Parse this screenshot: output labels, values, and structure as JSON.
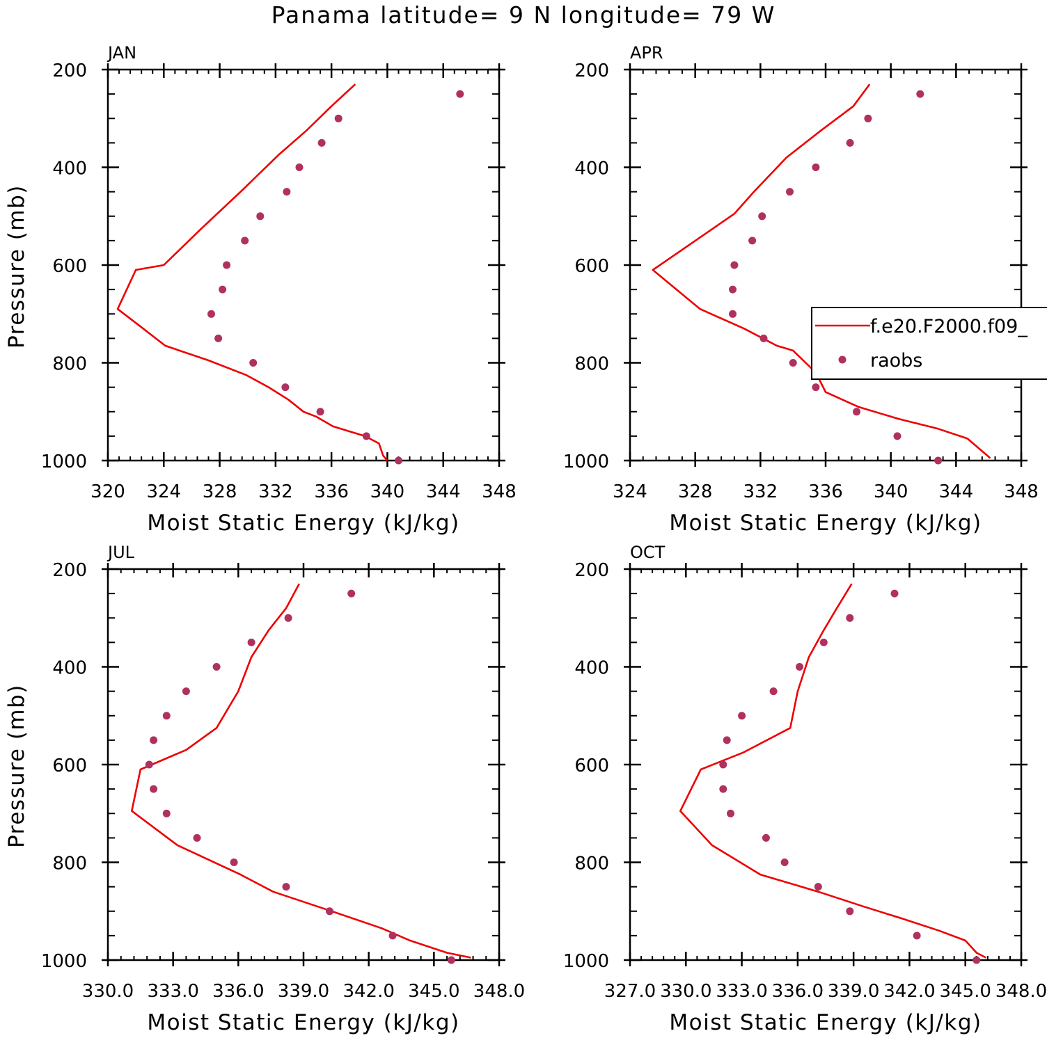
{
  "figure": {
    "title": "Panama  latitude= 9 N longitude= 79 W"
  },
  "colors": {
    "model_line": "#ee0000",
    "raobs_marker": "#b03060",
    "axis": "#000000"
  },
  "legend": {
    "entries": [
      {
        "label": "f.e20.F2000.f09_",
        "type": "line"
      },
      {
        "label": "raobs",
        "type": "marker"
      }
    ]
  },
  "chart_data": [
    {
      "type": "line",
      "panel": "JAN",
      "title": "JAN",
      "xlabel": "Moist Static Energy (kJ/kg)",
      "ylabel": "Pressure (mb)",
      "xlim": [
        320,
        348
      ],
      "ylim": [
        1000,
        200
      ],
      "y_inverted": true,
      "x_ticks": [
        320,
        324,
        328,
        332,
        336,
        340,
        344,
        348
      ],
      "x_tick_labels": [
        "320",
        "324",
        "328",
        "332",
        "336",
        "340",
        "344",
        "348"
      ],
      "y_ticks": [
        200,
        400,
        600,
        800,
        1000
      ],
      "y_tick_labels": [
        "200",
        "400",
        "600",
        "800",
        "1000"
      ],
      "series": [
        {
          "name": "f.e20.F2000.f09_",
          "kind": "line",
          "x": [
            337.7,
            336.0,
            334.2,
            332.2,
            329.5,
            326.7,
            324.0,
            322.0,
            320.7,
            322.3,
            324.1,
            327.2,
            329.9,
            331.5,
            332.9,
            334.0,
            334.9,
            336.1,
            338.4,
            339.4,
            339.7,
            340.0
          ],
          "y": [
            230,
            275,
            325,
            375,
            450,
            525,
            600,
            610,
            690,
            725,
            765,
            795,
            825,
            850,
            875,
            900,
            910,
            930,
            950,
            965,
            990,
            1000
          ]
        },
        {
          "name": "raobs",
          "kind": "scatter",
          "x": [
            345.2,
            336.5,
            335.3,
            333.7,
            332.8,
            330.9,
            329.8,
            328.5,
            328.2,
            327.4,
            327.9,
            330.4,
            332.7,
            335.2,
            338.5,
            340.8
          ],
          "y": [
            250,
            300,
            350,
            400,
            450,
            500,
            550,
            600,
            650,
            700,
            750,
            800,
            850,
            900,
            950,
            1000
          ]
        }
      ]
    },
    {
      "type": "line",
      "panel": "APR",
      "title": "APR",
      "xlabel": "Moist Static Energy (kJ/kg)",
      "ylabel": "",
      "xlim": [
        324,
        348
      ],
      "ylim": [
        1000,
        200
      ],
      "y_inverted": true,
      "x_ticks": [
        324,
        328,
        332,
        336,
        340,
        344,
        348
      ],
      "x_tick_labels": [
        "324",
        "328",
        "332",
        "336",
        "340",
        "344",
        "348"
      ],
      "y_ticks": [
        200,
        400,
        600,
        800,
        1000
      ],
      "y_tick_labels": [
        "200",
        "400",
        "600",
        "800",
        "1000"
      ],
      "series": [
        {
          "name": "f.e20.F2000.f09_",
          "kind": "line",
          "x": [
            338.7,
            337.7,
            335.7,
            333.6,
            331.6,
            330.4,
            329.1,
            325.4,
            328.3,
            331.0,
            333.0,
            334.0,
            335.4,
            336.0,
            338.0,
            340.5,
            342.9,
            344.7,
            346.1
          ],
          "y": [
            230,
            275,
            325,
            380,
            450,
            495,
            525,
            610,
            690,
            730,
            765,
            775,
            820,
            860,
            890,
            915,
            935,
            955,
            995
          ]
        },
        {
          "name": "raobs",
          "kind": "scatter",
          "x": [
            341.8,
            338.6,
            337.5,
            335.4,
            333.8,
            332.1,
            331.5,
            330.4,
            330.3,
            330.3,
            332.2,
            334.0,
            335.4,
            337.9,
            340.4,
            342.9
          ],
          "y": [
            250,
            300,
            350,
            400,
            450,
            500,
            550,
            600,
            650,
            700,
            750,
            800,
            850,
            900,
            950,
            1000
          ]
        }
      ]
    },
    {
      "type": "line",
      "panel": "JUL",
      "title": "JUL",
      "xlabel": "Moist Static Energy (kJ/kg)",
      "ylabel": "Pressure (mb)",
      "xlim": [
        330,
        348
      ],
      "ylim": [
        1000,
        200
      ],
      "y_inverted": true,
      "x_ticks": [
        330,
        333,
        336,
        339,
        342,
        345,
        348
      ],
      "x_tick_labels": [
        "330.0",
        "333.0",
        "336.0",
        "339.0",
        "342.0",
        "345.0",
        "348.0"
      ],
      "y_ticks": [
        200,
        400,
        600,
        800,
        1000
      ],
      "y_tick_labels": [
        "200",
        "400",
        "600",
        "800",
        "1000"
      ],
      "series": [
        {
          "name": "f.e20.F2000.f09_",
          "kind": "line",
          "x": [
            338.8,
            338.2,
            337.4,
            336.6,
            336.0,
            335.0,
            333.6,
            331.5,
            331.1,
            333.2,
            336.1,
            337.6,
            340.3,
            342.6,
            343.9,
            345.6,
            346.7
          ],
          "y": [
            230,
            280,
            325,
            380,
            450,
            525,
            570,
            610,
            695,
            765,
            825,
            860,
            900,
            935,
            960,
            985,
            995
          ]
        },
        {
          "name": "raobs",
          "kind": "scatter",
          "x": [
            341.2,
            338.3,
            336.6,
            335.0,
            333.6,
            332.7,
            332.1,
            331.9,
            332.1,
            332.7,
            334.1,
            335.8,
            338.2,
            340.2,
            343.1,
            345.8
          ],
          "y": [
            250,
            300,
            350,
            400,
            450,
            500,
            550,
            600,
            650,
            700,
            750,
            800,
            850,
            900,
            950,
            1000
          ]
        }
      ]
    },
    {
      "type": "line",
      "panel": "OCT",
      "title": "OCT",
      "xlabel": "Moist Static Energy (kJ/kg)",
      "ylabel": "",
      "xlim": [
        327,
        348
      ],
      "ylim": [
        1000,
        200
      ],
      "y_inverted": true,
      "x_ticks": [
        327,
        330,
        333,
        336,
        339,
        342,
        345,
        348
      ],
      "x_tick_labels": [
        "327.0",
        "330.0",
        "333.0",
        "336.0",
        "339.0",
        "342.0",
        "345.0",
        "348.0"
      ],
      "y_ticks": [
        200,
        400,
        600,
        800,
        1000
      ],
      "y_tick_labels": [
        "200",
        "400",
        "600",
        "800",
        "1000"
      ],
      "series": [
        {
          "name": "f.e20.F2000.f09_",
          "kind": "line",
          "x": [
            338.9,
            338.1,
            337.4,
            336.6,
            336.0,
            335.6,
            333.1,
            330.8,
            329.7,
            331.4,
            334.0,
            337.1,
            339.5,
            341.6,
            343.6,
            345.0,
            345.6,
            346.1
          ],
          "y": [
            230,
            280,
            325,
            380,
            450,
            525,
            575,
            610,
            695,
            765,
            825,
            860,
            890,
            915,
            940,
            960,
            985,
            995
          ]
        },
        {
          "name": "raobs",
          "kind": "scatter",
          "x": [
            341.2,
            338.8,
            337.4,
            336.1,
            334.7,
            333.0,
            332.2,
            332.0,
            332.0,
            332.4,
            334.3,
            335.3,
            337.1,
            338.8,
            342.4,
            345.6
          ],
          "y": [
            250,
            300,
            350,
            400,
            450,
            500,
            550,
            600,
            650,
            700,
            750,
            800,
            850,
            900,
            950,
            1000
          ]
        }
      ]
    }
  ]
}
